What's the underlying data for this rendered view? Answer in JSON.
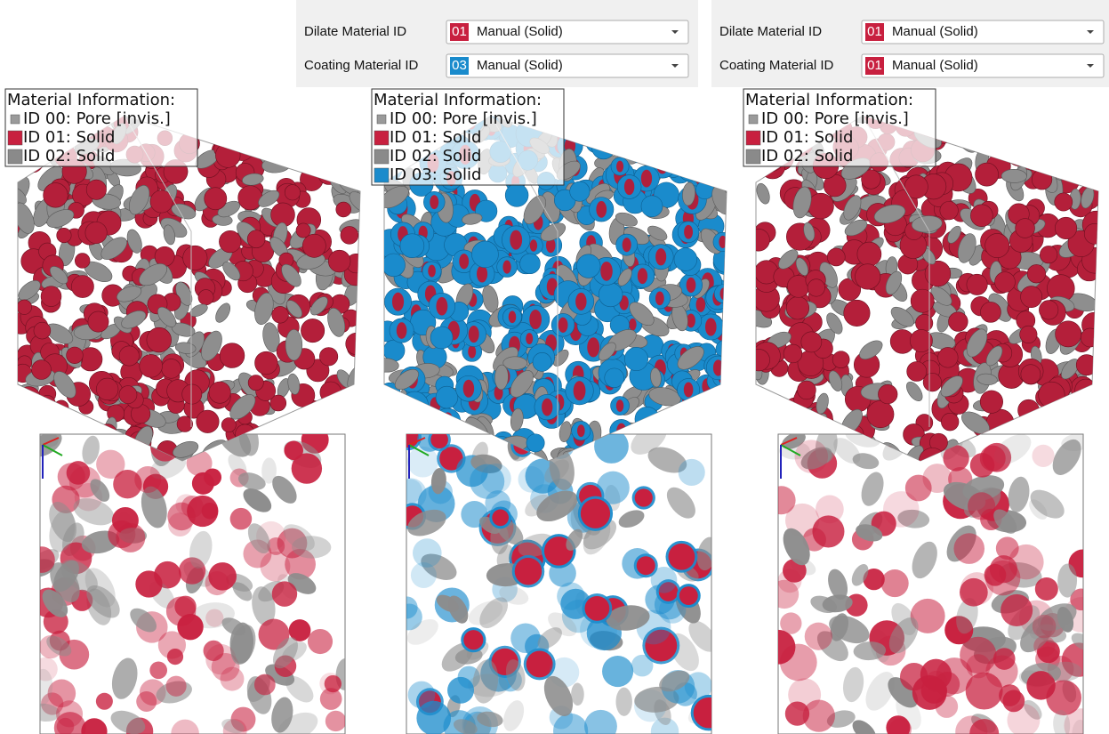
{
  "panels": [
    {
      "rows": [
        {
          "label": "Dilate Material ID",
          "id": "01",
          "id_color": "#c8203f",
          "value": "Manual (Solid)"
        },
        {
          "label": "Coating Material ID",
          "id": "03",
          "id_color": "#1a8bcc",
          "value": "Manual (Solid)"
        }
      ]
    },
    {
      "rows": [
        {
          "label": "Dilate Material ID",
          "id": "01",
          "id_color": "#c8203f",
          "value": "Manual (Solid)"
        },
        {
          "label": "Coating Material ID",
          "id": "01",
          "id_color": "#c8203f",
          "value": "Manual (Solid)"
        }
      ]
    }
  ],
  "views": [
    {
      "legend": {
        "title": "Material Information:",
        "entries": [
          {
            "text": "ID 00: Pore [invis.]",
            "color": "#9a9a9a"
          },
          {
            "text": "ID 01: Solid",
            "color": "#c8203f"
          },
          {
            "text": "ID 02: Solid",
            "color": "#8a8a8a"
          }
        ]
      }
    },
    {
      "legend": {
        "title": "Material Information:",
        "entries": [
          {
            "text": "ID 00: Pore [invis.]",
            "color": "#9a9a9a"
          },
          {
            "text": "ID 01: Solid",
            "color": "#c8203f"
          },
          {
            "text": "ID 02: Solid",
            "color": "#8a8a8a"
          },
          {
            "text": "ID 03: Solid",
            "color": "#1a8bcc"
          }
        ]
      }
    },
    {
      "legend": {
        "title": "Material Information:",
        "entries": [
          {
            "text": "ID 00: Pore [invis.]",
            "color": "#9a9a9a"
          },
          {
            "text": "ID 01: Solid",
            "color": "#c8203f"
          },
          {
            "text": "ID 02: Solid",
            "color": "#8a8a8a"
          }
        ]
      }
    }
  ]
}
